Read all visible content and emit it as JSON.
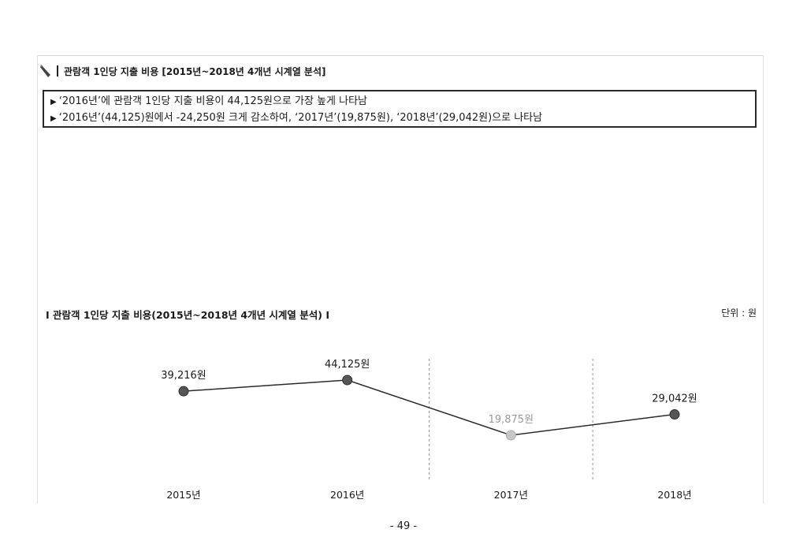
{
  "header": {
    "title": "관람객 1인당 지출 비용 [2015년~2018년 4개년 시계열 분석]"
  },
  "summary": {
    "lines": [
      "‘2016년’에 관람객 1인당 지출 비용이 44,125원으로 가장 높게 나타남",
      "‘2016년’(44,125)원에서 -24,250원 크게 감소하여, ‘2017년’(19,875원), ‘2018년’(29,042원)으로 나타남"
    ]
  },
  "chart_data": {
    "type": "line",
    "title": "Ⅰ 관람객 1인당 지출 비용(2015년~2018년  4개년 시계열 분석) Ⅰ",
    "unit": "단위 : 원",
    "categories": [
      "2015년",
      "2016년",
      "2017년",
      "2018년"
    ],
    "values": [
      39216,
      44125,
      19875,
      29042
    ],
    "data_labels": [
      "39,216원",
      "44,125원",
      "19,875원",
      "29,042원"
    ],
    "highlight_index": 2,
    "colors": {
      "line": "#2b2b2b",
      "point": "#555555",
      "highlight_point": "#c6c6c6",
      "highlight_label": "#9a9a9a",
      "divider": "#9a9a9a"
    },
    "grid": false,
    "dividers_after": [
      1,
      2
    ]
  },
  "page": {
    "number": "- 49 -"
  }
}
